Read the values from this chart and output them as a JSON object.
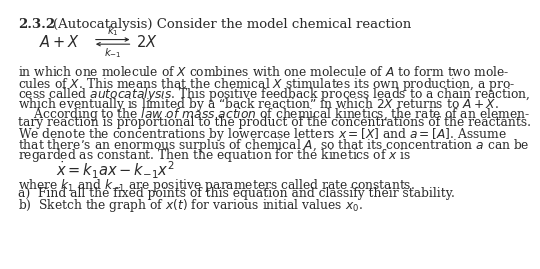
{
  "title_num": "2.3.2",
  "title_rest": "(Autocatalysis) Consider the model chemical reaction",
  "line1_body": [
    "in which one molecule of $X$ combines with one molecule of $A$ to form two mole-",
    "cules of $X$. This means that the chemical $X$ stimulates its own production, a pro-",
    "cess called $\\it{autocatalysis}$. This positive feedback process leads to a chain reaction,",
    "which eventually is limited by a “back reaction” in which $2X$ returns to $A + X$.",
    "    According to the $\\it{law\\ of\\ mass\\ action}$ of chemical kinetics, the rate of an elemen-",
    "tary reaction is proportional to the product of the concentrations of the reactants.",
    "We denote the concentrations by lowercase letters $x = [X]$ and $a = [A]$. Assume",
    "that there’s an enormous surplus of chemical $A$, so that its concentration $a$ can be",
    "regarded as constant. Then the equation for the kinetics of $x$ is"
  ],
  "footer_lines": [
    "where $k_1$ and $k_{-1}$ are positive parameters called rate constants.",
    "a)  Find all the fixed points of this equation and classify their stability.",
    "b)  Sketch the graph of $x(t)$ for various initial values $x_0$."
  ],
  "bg_color": "#ffffff",
  "text_color": "#2a2a2a",
  "font_size": 8.8,
  "title_font_size": 9.5
}
